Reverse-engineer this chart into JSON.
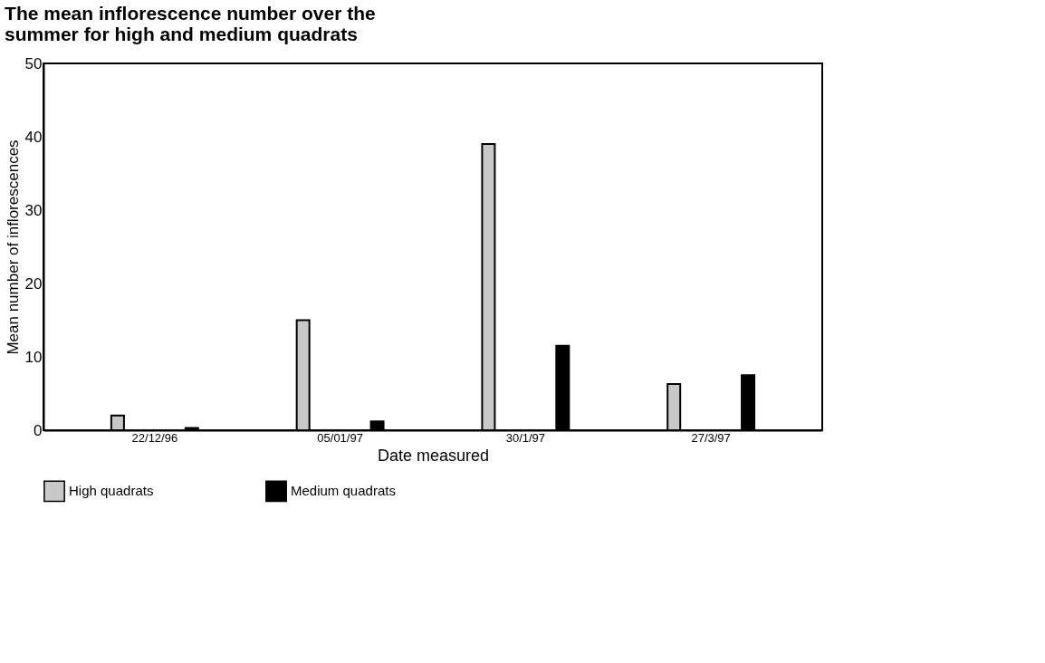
{
  "chart_data": {
    "type": "bar",
    "title": "The mean inflorescence number over the\n  summer for high and medium quadrats",
    "xlabel": "Date measured",
    "ylabel": "Mean number of inflorescences",
    "categories": [
      "22/12/96",
      "05/01/97",
      "30/1/97",
      "27/3/97"
    ],
    "series": [
      {
        "name": "High quadrats",
        "color": "#c8c8c8",
        "values": [
          2,
          15,
          39,
          6.3
        ]
      },
      {
        "name": "Medium quadrats",
        "color": "#000000",
        "values": [
          0.3,
          1.2,
          11.5,
          7.5
        ]
      }
    ],
    "ylim": [
      0,
      50
    ],
    "yticks": [
      0,
      10,
      20,
      30,
      40,
      50
    ],
    "grid": false,
    "legend": "bottom"
  }
}
